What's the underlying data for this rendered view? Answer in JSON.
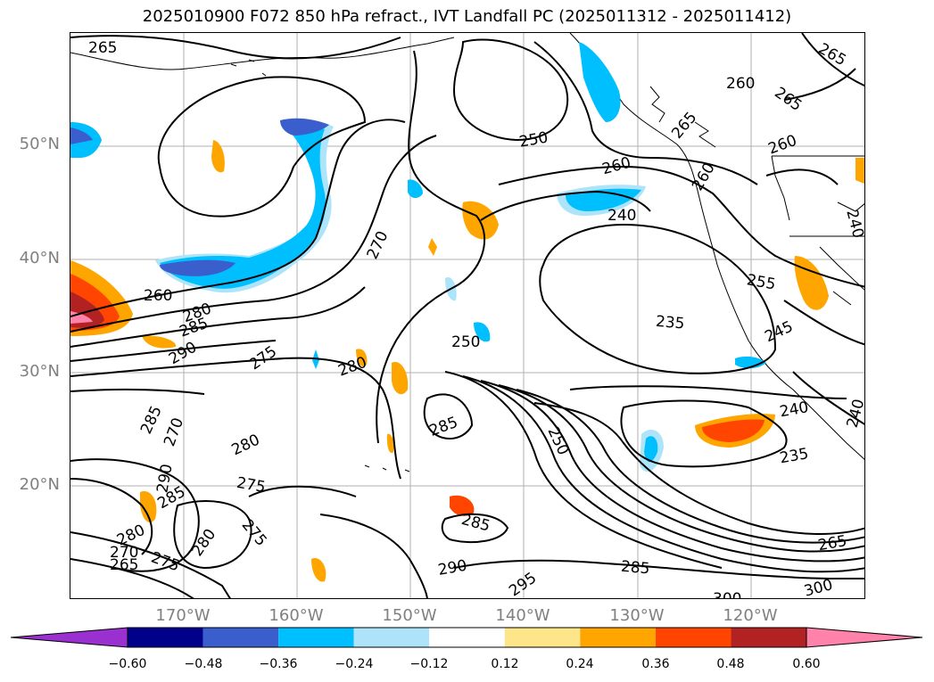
{
  "title": "2025010900 F072 850 hPa refract., IVT Landfall PC (2025011312 - 2025011412)",
  "lat_labels": [
    "50°N",
    "40°N",
    "30°N",
    "20°N"
  ],
  "lon_labels": [
    "170°W",
    "160°W",
    "150°W",
    "140°W",
    "130°W",
    "120°W"
  ],
  "colorbar": {
    "ticks": [
      "−0.60",
      "−0.48",
      "−0.36",
      "−0.24",
      "−0.12",
      "0.12",
      "0.24",
      "0.36",
      "0.48",
      "0.60"
    ],
    "colors": [
      "#9b30d0",
      "#00008b",
      "#3a5fcd",
      "#00bfff",
      "#aee4fa",
      "#ffffff",
      "#fde68a",
      "#ffa500",
      "#ff4500",
      "#b22222",
      "#ff82ab"
    ]
  },
  "contour_labels": [
    "265",
    "260",
    "265",
    "260",
    "265",
    "250",
    "260",
    "265",
    "260",
    "240",
    "270",
    "260",
    "280",
    "285",
    "290",
    "275",
    "280",
    "250",
    "235",
    "255",
    "245",
    "285",
    "270",
    "280",
    "275",
    "285",
    "290",
    "285",
    "280",
    "280",
    "275",
    "265",
    "270",
    "275",
    "285",
    "250",
    "240",
    "235",
    "290",
    "295",
    "285",
    "300",
    "300",
    "265",
    "240",
    "240"
  ]
}
